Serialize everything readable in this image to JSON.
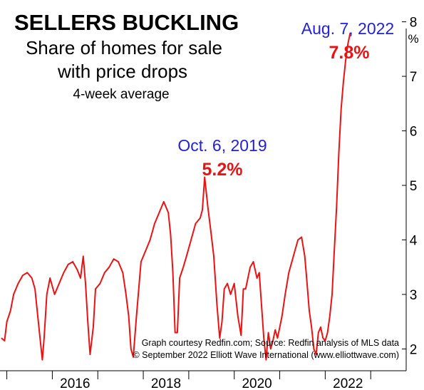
{
  "chart_data": {
    "type": "line",
    "title": "SELLERS BUCKLING",
    "subtitle_lines": [
      "Share of homes for sale",
      "with price drops"
    ],
    "note": "4-week average",
    "y_unit": "%",
    "ylim": [
      1.6,
      8.4
    ],
    "y_ticks": [
      "2",
      "3",
      "4",
      "5",
      "6",
      "7",
      "8"
    ],
    "xlim": [
      2014.85,
      2023.78
    ],
    "x_ticks": [
      "2016",
      "2018",
      "2020",
      "2022"
    ],
    "x_tick_marks": [
      2015,
      2016,
      2017,
      2018,
      2019,
      2020,
      2021,
      2022,
      2023
    ],
    "series_color": "#ee1111",
    "annotation_color": "#2222dd",
    "annotations": [
      {
        "date": "Oct. 6, 2019",
        "value": "5.2%",
        "x": 2019.3,
        "y": 5.15
      },
      {
        "date": "Aug. 7, 2022",
        "value": "7.8%",
        "x": 2022.55,
        "y": 7.8
      }
    ],
    "credit_lines": [
      "Graph courtesy Redfin.com; Source: Redfin analysis of MLS data",
      "© September 2022 Elliott Wave International (www.elliottwave.com)"
    ],
    "series": [
      {
        "x": [
          2014.88,
          2014.95,
          2015.0,
          2015.08,
          2015.15,
          2015.25,
          2015.35,
          2015.45,
          2015.55,
          2015.62,
          2015.68,
          2015.73,
          2015.78,
          2015.82,
          2015.88,
          2015.95,
          2016.05,
          2016.15,
          2016.25,
          2016.35,
          2016.45,
          2016.55,
          2016.62,
          2016.68,
          2016.73,
          2016.78,
          2016.83,
          2016.9,
          2016.95,
          2017.05,
          2017.15,
          2017.25,
          2017.35,
          2017.45,
          2017.55,
          2017.62,
          2017.68,
          2017.73,
          2017.78,
          2017.85,
          2017.95,
          2018.05,
          2018.15,
          2018.25,
          2018.35,
          2018.45,
          2018.55,
          2018.6,
          2018.65,
          2018.7,
          2018.75,
          2018.8,
          2018.88,
          2018.95,
          2019.05,
          2019.15,
          2019.25,
          2019.3,
          2019.35,
          2019.42,
          2019.48,
          2019.55,
          2019.62,
          2019.68,
          2019.73,
          2019.78,
          2019.85,
          2019.92,
          2020.0,
          2020.08,
          2020.15,
          2020.2,
          2020.25,
          2020.3,
          2020.35,
          2020.42,
          2020.5,
          2020.55,
          2020.6,
          2020.65,
          2020.7,
          2020.75,
          2020.8,
          2020.85,
          2020.9,
          2020.95,
          2021.0,
          2021.05,
          2021.12,
          2021.2,
          2021.3,
          2021.4,
          2021.48,
          2021.55,
          2021.6,
          2021.65,
          2021.7,
          2021.75,
          2021.8,
          2021.85,
          2021.9,
          2021.95,
          2022.0,
          2022.05,
          2022.1,
          2022.15,
          2022.2,
          2022.25,
          2022.3,
          2022.35,
          2022.4,
          2022.45,
          2022.5,
          2022.55
        ],
        "values": [
          2.2,
          2.15,
          2.5,
          2.7,
          3.0,
          3.2,
          3.35,
          3.4,
          3.3,
          3.1,
          2.6,
          2.2,
          1.8,
          2.2,
          3.0,
          3.3,
          3.0,
          3.2,
          3.4,
          3.55,
          3.6,
          3.45,
          3.3,
          3.7,
          3.2,
          2.5,
          1.9,
          2.4,
          3.1,
          3.2,
          3.4,
          3.5,
          3.65,
          3.6,
          3.4,
          3.0,
          2.6,
          2.0,
          1.85,
          2.6,
          3.6,
          3.8,
          4.0,
          4.3,
          4.5,
          4.7,
          4.5,
          4.1,
          3.4,
          2.3,
          2.3,
          3.3,
          3.5,
          3.7,
          4.0,
          4.3,
          4.4,
          4.55,
          5.15,
          4.6,
          4.2,
          3.7,
          2.8,
          2.2,
          2.5,
          3.1,
          3.2,
          3.0,
          3.2,
          2.6,
          2.25,
          3.1,
          3.1,
          3.3,
          3.5,
          3.6,
          3.3,
          3.4,
          2.8,
          2.2,
          1.8,
          2.3,
          2.0,
          2.15,
          2.35,
          2.2,
          2.4,
          2.6,
          3.0,
          3.4,
          3.7,
          4.0,
          4.05,
          3.7,
          3.2,
          2.7,
          2.4,
          2.0,
          1.9,
          2.3,
          2.4,
          2.2,
          2.15,
          2.3,
          2.6,
          3.0,
          3.8,
          4.6,
          5.6,
          6.4,
          6.9,
          7.3,
          7.6,
          7.8
        ]
      }
    ]
  }
}
